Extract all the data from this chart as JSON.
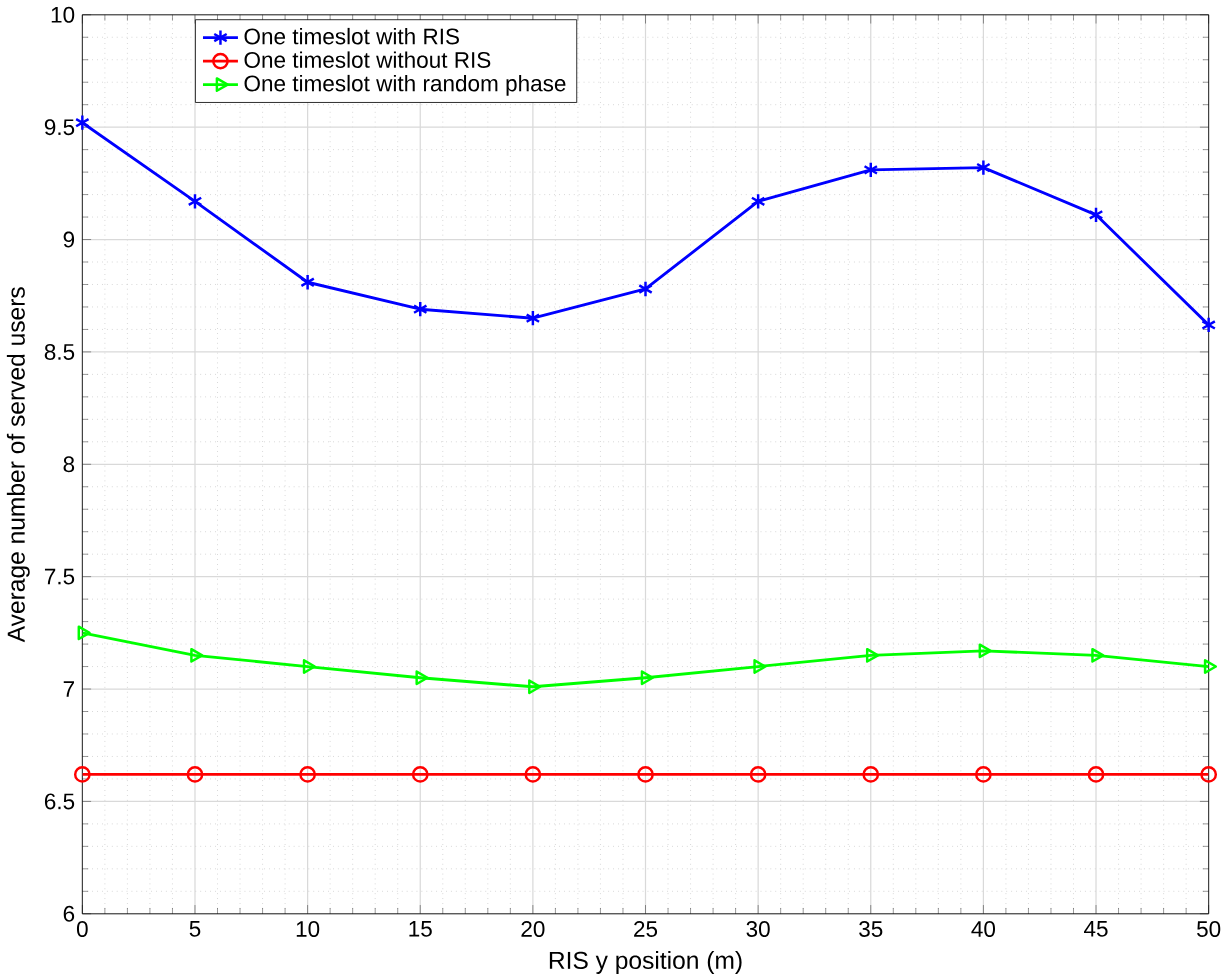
{
  "chart_data": {
    "type": "line",
    "xlabel": "RIS y position (m)",
    "ylabel": "Average number of served users",
    "x": [
      0,
      5,
      10,
      15,
      20,
      25,
      30,
      35,
      40,
      45,
      50
    ],
    "series": [
      {
        "name": "One timeslot with RIS",
        "color": "#0000ff",
        "marker": "cross",
        "values": [
          9.52,
          9.17,
          8.81,
          8.69,
          8.65,
          8.78,
          9.17,
          9.31,
          9.32,
          9.11,
          8.62
        ]
      },
      {
        "name": "One timeslot without RIS",
        "color": "#ff0000",
        "marker": "circle",
        "values": [
          6.62,
          6.62,
          6.62,
          6.62,
          6.62,
          6.62,
          6.62,
          6.62,
          6.62,
          6.62,
          6.62
        ]
      },
      {
        "name": "One timeslot with random phase",
        "color": "#00ff00",
        "marker": "triangle",
        "values": [
          7.25,
          7.15,
          7.1,
          7.05,
          7.01,
          7.05,
          7.1,
          7.15,
          7.17,
          7.15,
          7.1
        ]
      }
    ],
    "xlim": [
      0,
      50
    ],
    "ylim": [
      6,
      10
    ],
    "xticks": [
      0,
      5,
      10,
      15,
      20,
      25,
      30,
      35,
      40,
      45,
      50
    ],
    "yticks": [
      6,
      6.5,
      7,
      7.5,
      8,
      8.5,
      9,
      9.5,
      10
    ],
    "grid": true,
    "legend": "top left",
    "line_style": "solid"
  }
}
